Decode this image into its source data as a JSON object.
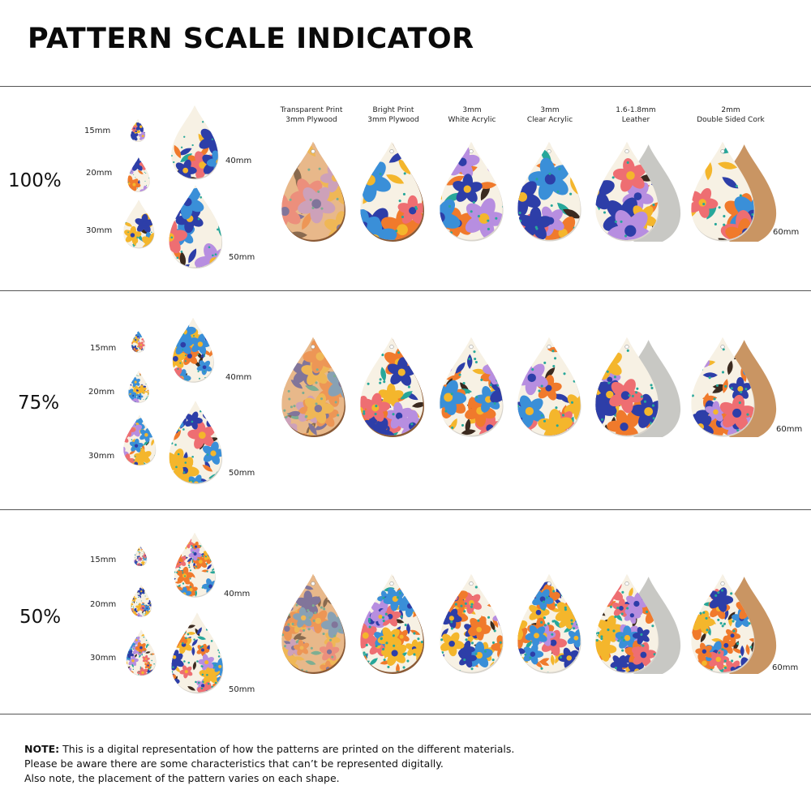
{
  "title": "PATTERN SCALE INDICATOR",
  "materials": [
    {
      "line1": "Transparent Print",
      "line2": "3mm Plywood"
    },
    {
      "line1": "Bright Print",
      "line2": "3mm Plywood"
    },
    {
      "line1": "3mm",
      "line2": "White Acrylic"
    },
    {
      "line1": "3mm",
      "line2": "Clear Acrylic"
    },
    {
      "line1": "1.6-1.8mm",
      "line2": "Leather"
    },
    {
      "line1": "2mm",
      "line2": "Double Sided Cork"
    }
  ],
  "rows": [
    {
      "scale": "100%",
      "sizes": [
        "15mm",
        "20mm",
        "30mm",
        "40mm",
        "50mm",
        "60mm"
      ]
    },
    {
      "scale": "75%",
      "sizes": [
        "15mm",
        "20mm",
        "30mm",
        "40mm",
        "50mm",
        "60mm"
      ]
    },
    {
      "scale": "50%",
      "sizes": [
        "15mm",
        "20mm",
        "30mm",
        "40mm",
        "50mm",
        "60mm"
      ]
    }
  ],
  "note": {
    "label": "NOTE:",
    "line1": " This is a digital representation of how the patterns are printed on the different materials.",
    "line2": "Please be aware there are some characteristics that can’t be represented digitally.",
    "line3": "Also note, the placement of the pattern varies on each shape."
  },
  "colors": {
    "cream": "#f7f1e4",
    "blue": "#3a8fd8",
    "navy": "#2d3ea8",
    "orange": "#f07a2c",
    "yellow": "#f4b62c",
    "pink": "#ee6e72",
    "lilac": "#b78ee0",
    "teal": "#27a79a",
    "wood": "#e8b98a",
    "leather": "#c8c8c4",
    "cork": "#c99563"
  }
}
